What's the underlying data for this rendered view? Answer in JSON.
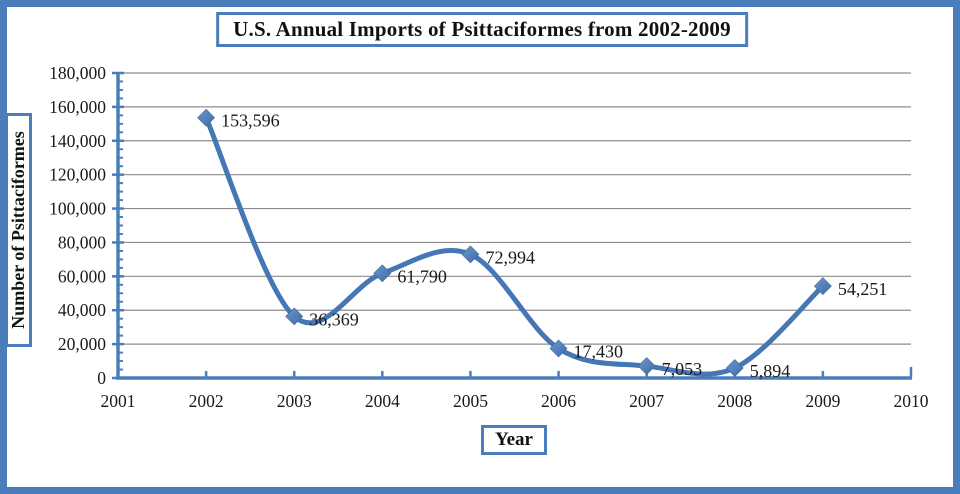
{
  "chart_data": {
    "type": "line",
    "title": "U.S. Annual Imports of Psittaciformes from 2002-2009",
    "xlabel": "Year",
    "ylabel": "Number of Psittaciformes",
    "x": [
      2002,
      2003,
      2004,
      2005,
      2006,
      2007,
      2008,
      2009
    ],
    "values": [
      153596,
      36369,
      61790,
      72994,
      17430,
      7053,
      5894,
      54251
    ],
    "data_labels": [
      "153,596",
      "36,369",
      "61,790",
      "72,994",
      "17,430",
      "7,053",
      "5,894",
      "54,251"
    ],
    "xlim": [
      2001,
      2010
    ],
    "x_ticks": [
      2001,
      2002,
      2003,
      2004,
      2005,
      2006,
      2007,
      2008,
      2009,
      2010
    ],
    "x_tick_labels": [
      "2001",
      "2002",
      "2003",
      "2004",
      "2005",
      "2006",
      "2007",
      "2008",
      "2009",
      "2010"
    ],
    "ylim": [
      0,
      180000
    ],
    "y_tick_step": 20000,
    "y_minor_step": 5000,
    "y_tick_labels": [
      "0",
      "20,000",
      "40,000",
      "60,000",
      "80,000",
      "100,000",
      "120,000",
      "140,000",
      "160,000",
      "180,000"
    ],
    "grid": true,
    "legend": "none",
    "line_style": "smooth",
    "marker": "diamond",
    "colors": {
      "line": "#4576B5",
      "marker_light": "#6D97CC",
      "marker_dark": "#3E6CA4",
      "axis": "#4A7EBB",
      "grid": "#8C8C8C",
      "frame": "#4A7EBB",
      "text": "#1A1A1A"
    }
  }
}
